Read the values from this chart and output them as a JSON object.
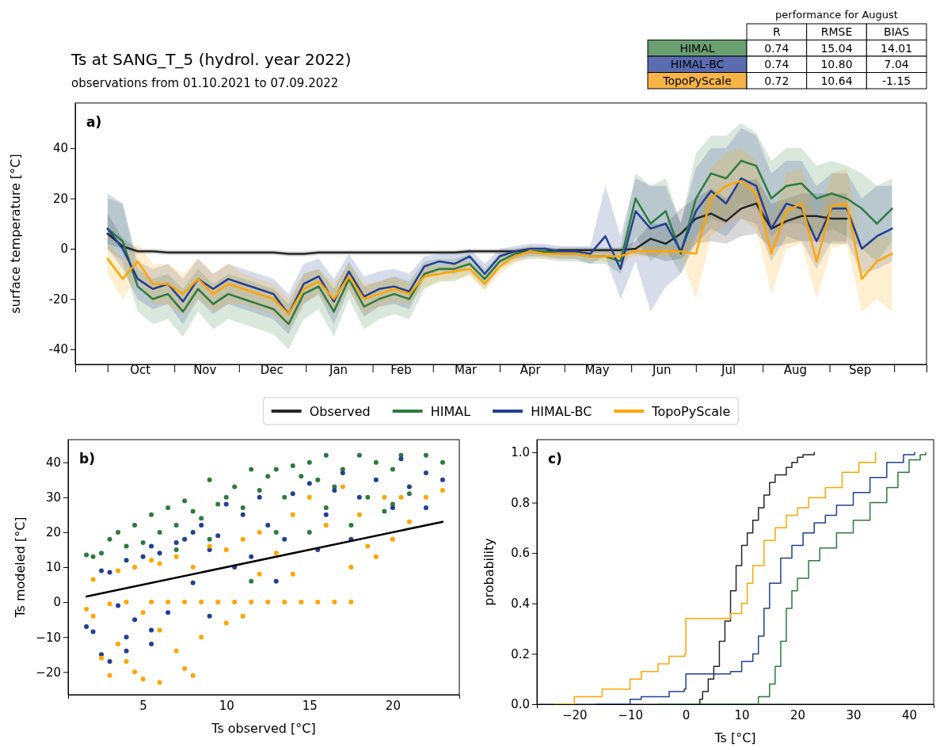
{
  "chart_data": [
    {
      "type": "other",
      "title": "performance for August",
      "categories": [
        "HIMAL",
        "HIMAL-BC",
        "TopoPyScale"
      ],
      "y_categories": [
        "R",
        "RMSE",
        "BIAS"
      ],
      "colors": [
        "#6a9f72",
        "#5b6db0",
        "#f7b447"
      ],
      "cell_labels": [
        [
          "0.74",
          "0.74",
          "0.72"
        ],
        [
          "15.04",
          "10.80",
          "10.64"
        ],
        [
          "14.01",
          "7.04",
          "-1.15"
        ]
      ]
    },
    {
      "type": "line",
      "title": "Ts at SANG_T_5 (hydrol. year 2022)",
      "subtitle": "observations from 01.10.2021 to 07.09.2022",
      "ylabel": "surface temperature [°C]",
      "annotations": [
        "a)"
      ],
      "legend": "bottom",
      "xlim": [
        "2021-09-16",
        "2022-10-16"
      ],
      "ylim": [
        -46,
        58
      ],
      "yticks": [
        -40,
        -20,
        0,
        20,
        40
      ],
      "xticks": [
        {
          "value": "2021-10-01",
          "label": null
        },
        {
          "value": "2021-10-16",
          "label": "Oct"
        },
        {
          "value": "2021-11-01",
          "label": null
        },
        {
          "value": "2021-11-15",
          "label": "Nov"
        },
        {
          "value": "2021-12-01",
          "label": null
        },
        {
          "value": "2021-12-16",
          "label": "Dec"
        },
        {
          "value": "2022-01-01",
          "label": null
        },
        {
          "value": "2022-01-16",
          "label": "Jan"
        },
        {
          "value": "2022-02-01",
          "label": null
        },
        {
          "value": "2022-02-14",
          "label": "Feb"
        },
        {
          "value": "2022-03-01",
          "label": null
        },
        {
          "value": "2022-03-16",
          "label": "Mar"
        },
        {
          "value": "2022-04-01",
          "label": null
        },
        {
          "value": "2022-04-15",
          "label": "Apr"
        },
        {
          "value": "2022-05-01",
          "label": null
        },
        {
          "value": "2022-05-16",
          "label": "May"
        },
        {
          "value": "2022-06-01",
          "label": null
        },
        {
          "value": "2022-06-15",
          "label": "Jun"
        },
        {
          "value": "2022-07-01",
          "label": null
        },
        {
          "value": "2022-07-16",
          "label": "Jul"
        },
        {
          "value": "2022-08-01",
          "label": null
        },
        {
          "value": "2022-08-16",
          "label": "Aug"
        },
        {
          "value": "2022-09-01",
          "label": null
        },
        {
          "value": "2022-09-15",
          "label": "Sep"
        },
        {
          "value": "2022-10-01",
          "label": null
        }
      ],
      "x": [
        "2021-10-01",
        "2021-10-08",
        "2021-10-15",
        "2021-10-22",
        "2021-10-29",
        "2021-11-05",
        "2021-11-12",
        "2021-11-19",
        "2021-11-26",
        "2021-12-03",
        "2021-12-10",
        "2021-12-17",
        "2021-12-24",
        "2021-12-31",
        "2022-01-07",
        "2022-01-14",
        "2022-01-21",
        "2022-01-28",
        "2022-02-04",
        "2022-02-11",
        "2022-02-18",
        "2022-02-25",
        "2022-03-04",
        "2022-03-11",
        "2022-03-18",
        "2022-03-25",
        "2022-04-01",
        "2022-04-08",
        "2022-04-15",
        "2022-04-22",
        "2022-04-29",
        "2022-05-06",
        "2022-05-13",
        "2022-05-20",
        "2022-05-27",
        "2022-06-03",
        "2022-06-10",
        "2022-06-17",
        "2022-06-24",
        "2022-07-01",
        "2022-07-08",
        "2022-07-15",
        "2022-07-22",
        "2022-07-29",
        "2022-08-05",
        "2022-08-12",
        "2022-08-19",
        "2022-08-26",
        "2022-09-02",
        "2022-09-09",
        "2022-09-16",
        "2022-09-23",
        "2022-09-30"
      ],
      "series": [
        {
          "name": "Observed",
          "color": "#262626",
          "values": [
            6,
            1,
            -1,
            -1,
            -1.5,
            -1.5,
            -1.5,
            -1.5,
            -1.5,
            -1.5,
            -1.5,
            -1.5,
            -2,
            -2,
            -1.5,
            -1.5,
            -1.5,
            -1.5,
            -1.5,
            -1.5,
            -1.5,
            -1.5,
            -1.5,
            -1.5,
            -1,
            -1,
            -1,
            -1,
            -1,
            -1,
            -0.5,
            -0.5,
            -0.5,
            -0.5,
            -0.5,
            0,
            4,
            2,
            6,
            12,
            14,
            11,
            16,
            18,
            8,
            11,
            13,
            13,
            12,
            12,
            null,
            null,
            null
          ],
          "lower": [
            2,
            0,
            -2,
            -2,
            -2.5,
            -2.5,
            -2.5,
            -2.5,
            -2.5,
            -2.5,
            -2.5,
            -2.5,
            -3,
            -3,
            -2.5,
            -2.5,
            -2.5,
            -2.5,
            -2.5,
            -2.5,
            -2.5,
            -2.5,
            -2.5,
            -2.5,
            -2,
            -2,
            -2,
            -2,
            -2,
            -2,
            -1.5,
            -1.5,
            -1.5,
            -1.5,
            -1.5,
            -2,
            -3,
            -5,
            -4,
            2,
            3,
            2,
            5,
            6,
            0,
            2,
            3,
            3,
            2,
            2,
            null,
            null,
            null
          ],
          "upper": [
            14,
            4,
            0,
            0,
            -0.5,
            -0.5,
            -0.5,
            -0.5,
            -0.5,
            -0.5,
            -0.5,
            -0.5,
            -1,
            -1,
            -0.5,
            -0.5,
            -0.5,
            -0.5,
            -0.5,
            -0.5,
            -0.5,
            -0.5,
            -0.5,
            -0.5,
            0,
            0,
            0,
            0,
            0,
            0,
            0.5,
            0.5,
            0.5,
            0.5,
            0.5,
            3,
            10,
            10,
            16,
            20,
            24,
            20,
            26,
            28,
            18,
            20,
            22,
            22,
            22,
            22,
            null,
            null,
            null
          ]
        },
        {
          "name": "HIMAL",
          "color": "#2e7a3e",
          "values": [
            8,
            3,
            -15,
            -20,
            -18,
            -25,
            -16,
            -22,
            -18,
            -20,
            -22,
            -24,
            -30,
            -18,
            -15,
            -25,
            -12,
            -23,
            -20,
            -18,
            -20,
            -10,
            -8,
            -8,
            -6,
            -12,
            -5,
            -2,
            -1,
            -1,
            -2,
            -2,
            -3,
            -3,
            -5,
            20,
            10,
            15,
            -2,
            20,
            30,
            28,
            35,
            33,
            20,
            25,
            26,
            20,
            22,
            20,
            16,
            10,
            16
          ],
          "lower": [
            0,
            -5,
            -25,
            -30,
            -28,
            -35,
            -25,
            -32,
            -28,
            -30,
            -32,
            -34,
            -40,
            -28,
            -24,
            -35,
            -20,
            -32,
            -28,
            -26,
            -28,
            -16,
            -13,
            -13,
            -10,
            -16,
            -8,
            -5,
            -4,
            -4,
            -5,
            -5,
            -6,
            -6,
            -10,
            5,
            -5,
            0,
            -10,
            5,
            12,
            10,
            18,
            16,
            5,
            10,
            10,
            5,
            8,
            5,
            0,
            -5,
            3
          ],
          "upper": [
            20,
            18,
            -8,
            -12,
            -10,
            -16,
            -8,
            -14,
            -10,
            -12,
            -14,
            -16,
            -22,
            -10,
            -8,
            -16,
            -5,
            -15,
            -13,
            -11,
            -13,
            -5,
            -4,
            -4,
            -2,
            -8,
            -2,
            0,
            1,
            1,
            0,
            0,
            0,
            0,
            0,
            30,
            25,
            28,
            10,
            38,
            45,
            45,
            50,
            46,
            35,
            40,
            40,
            33,
            35,
            33,
            30,
            25,
            28
          ]
        },
        {
          "name": "HIMAL-BC",
          "color": "#233f92",
          "values": [
            8,
            0,
            -12,
            -16,
            -14,
            -21,
            -12,
            -16,
            -12,
            -14,
            -16,
            -18,
            -26,
            -14,
            -11,
            -21,
            -9,
            -19,
            -16,
            -15,
            -17,
            -7,
            -5,
            -6,
            -3,
            -10,
            -3,
            -1,
            0,
            0,
            -1,
            -1,
            -2,
            5,
            -8,
            15,
            8,
            10,
            -1,
            15,
            23,
            18,
            28,
            25,
            8,
            18,
            16,
            3,
            16,
            16,
            0,
            5,
            8
          ],
          "lower": [
            0,
            -8,
            -20,
            -24,
            -22,
            -30,
            -20,
            -26,
            -22,
            -24,
            -26,
            -28,
            -34,
            -22,
            -18,
            -30,
            -16,
            -27,
            -23,
            -22,
            -24,
            -12,
            -9,
            -10,
            -7,
            -14,
            -6,
            -4,
            -3,
            -3,
            -4,
            -4,
            -6,
            -3,
            -20,
            -5,
            -25,
            -15,
            -10,
            2,
            8,
            5,
            12,
            10,
            -5,
            5,
            3,
            -8,
            3,
            3,
            -10,
            -8,
            -5
          ],
          "upper": [
            22,
            18,
            -5,
            -8,
            -6,
            -12,
            -4,
            -10,
            -6,
            -8,
            -10,
            -12,
            -18,
            -6,
            -4,
            -12,
            -2,
            -11,
            -9,
            -8,
            -10,
            -3,
            -2,
            -2,
            0,
            -6,
            0,
            1,
            2,
            2,
            1,
            1,
            1,
            25,
            5,
            28,
            25,
            25,
            10,
            32,
            40,
            40,
            48,
            45,
            30,
            35,
            35,
            25,
            30,
            30,
            20,
            25,
            25
          ]
        },
        {
          "name": "TopoPyScale",
          "color": "#ffa500",
          "values": [
            -4,
            -12,
            -5,
            -14,
            -14,
            -18,
            -12,
            -18,
            -14,
            -16,
            -18,
            -20,
            -26,
            -16,
            -13,
            -20,
            -11,
            -20,
            -18,
            -16,
            -18,
            -11,
            -10,
            -9,
            -8,
            -14,
            -7,
            -3,
            -1,
            -2,
            -2,
            -2,
            -3,
            -3,
            -3,
            -1,
            -1,
            -1,
            -1,
            -2,
            20,
            25,
            27,
            22,
            -2,
            15,
            18,
            -5,
            17,
            18,
            -12,
            -5,
            -2
          ],
          "lower": [
            -10,
            -20,
            -12,
            -22,
            -22,
            -26,
            -20,
            -25,
            -22,
            -22,
            -24,
            -26,
            -32,
            -22,
            -18,
            -26,
            -16,
            -26,
            -23,
            -21,
            -22,
            -15,
            -13,
            -12,
            -11,
            -17,
            -10,
            -6,
            -3,
            -4,
            -4,
            -4,
            -5,
            -5,
            -5,
            -3,
            -3,
            -3,
            -3,
            -20,
            5,
            10,
            12,
            8,
            -18,
            0,
            2,
            -20,
            0,
            2,
            -25,
            -20,
            -25
          ],
          "upper": [
            2,
            -4,
            2,
            -6,
            -6,
            -10,
            -4,
            -10,
            -6,
            -10,
            -12,
            -14,
            -20,
            -10,
            -8,
            -14,
            -6,
            -14,
            -13,
            -11,
            -14,
            -7,
            -7,
            -6,
            -5,
            -11,
            -4,
            0,
            1,
            0,
            0,
            0,
            -1,
            -1,
            -1,
            1,
            1,
            1,
            1,
            5,
            32,
            38,
            40,
            35,
            10,
            30,
            32,
            10,
            30,
            32,
            0,
            5,
            5
          ]
        }
      ]
    },
    {
      "type": "scatter",
      "xlabel": "Ts observed [°C]",
      "ylabel": "Ts modeled [°C]",
      "annotations": [
        "b)"
      ],
      "xlim": [
        0.5,
        24
      ],
      "ylim": [
        -26.5,
        46.5
      ],
      "xticks": [
        5,
        10,
        15,
        20
      ],
      "yticks": [
        {
          "value": -20,
          "label": "−20"
        },
        {
          "value": -10,
          "label": "−10"
        },
        0,
        10,
        20,
        30,
        40
      ],
      "series": [
        {
          "color": "#2e7a3e",
          "x": [
            1.6,
            2,
            2.5,
            3,
            3.5,
            4,
            4.5,
            5,
            5.5,
            6,
            6.5,
            7,
            7.5,
            8,
            8.5,
            9,
            9.5,
            10,
            10.5,
            11,
            11.5,
            12,
            12.5,
            13,
            13.5,
            14,
            14.5,
            15,
            15.5,
            16,
            16.5,
            17,
            17.5,
            18,
            18.5,
            19,
            19.5,
            20,
            20.5,
            21,
            22,
            23,
            11.5,
            13,
            16,
            15,
            20,
            9,
            7
          ],
          "values": [
            13.5,
            13,
            14,
            18,
            20,
            16,
            22,
            17,
            25,
            20,
            27,
            22,
            29,
            26,
            24,
            35,
            28,
            30,
            33,
            27,
            38,
            32,
            36,
            38,
            30,
            39,
            36,
            40,
            35,
            42,
            33,
            38,
            22,
            42,
            30,
            40,
            26,
            38,
            42,
            31,
            42,
            40,
            6,
            20,
            27,
            20,
            28,
            18,
            15
          ]
        },
        {
          "color": "#233f92",
          "x": [
            1.6,
            2,
            2.5,
            3,
            3.5,
            4,
            4,
            4.5,
            5,
            5.5,
            5.5,
            6,
            6.5,
            7,
            7.5,
            8,
            8,
            8.5,
            9,
            9,
            9.5,
            10,
            10.5,
            11,
            11.5,
            12,
            12.5,
            13,
            13.5,
            14,
            15,
            15.5,
            16,
            16.5,
            17,
            17.5,
            18,
            19,
            20,
            20.5,
            21,
            22,
            22,
            23,
            2.5,
            3,
            4,
            5.5
          ],
          "values": [
            -7,
            -8.5,
            9,
            8.5,
            -1,
            -10,
            12,
            -5,
            13,
            -8,
            16,
            14,
            -3,
            17,
            18,
            5.5,
            20,
            22,
            -4,
            15,
            19,
            28,
            10,
            25,
            13,
            30,
            22,
            6,
            18,
            31,
            34,
            15,
            25,
            32,
            37,
            18,
            30,
            35,
            27,
            41,
            33,
            37,
            27,
            35,
            -15,
            -17,
            -14,
            -12
          ]
        },
        {
          "color": "#ffa500",
          "x": [
            1.6,
            2,
            2,
            2.5,
            3,
            3,
            3.5,
            3.5,
            4,
            4,
            4.5,
            4.5,
            5,
            5,
            5.5,
            5.5,
            6,
            6,
            6,
            6.5,
            7,
            7,
            7.5,
            7.5,
            8,
            8,
            8.5,
            8.5,
            9,
            9.5,
            10,
            10,
            10.5,
            11,
            11,
            11.5,
            12,
            12.5,
            13,
            13.5,
            14,
            14.5,
            15,
            15.5,
            16,
            16.5,
            17,
            17.5,
            17.5,
            18,
            18.5,
            19,
            19.5,
            20,
            20.5,
            21,
            22,
            23,
            12,
            14
          ],
          "values": [
            -2,
            -4,
            6.5,
            -16,
            -21,
            -0.5,
            9,
            -12,
            -17,
            0,
            -20,
            10,
            -3,
            -22,
            0,
            12,
            -23,
            -8,
            11,
            0,
            -14,
            13,
            -19,
            0,
            -21,
            10,
            -10,
            0,
            16,
            0,
            -6,
            15,
            0,
            -4,
            18,
            0,
            20,
            0,
            14,
            0,
            25,
            0,
            30,
            0,
            22,
            0,
            33,
            0,
            10,
            25,
            16,
            13,
            30,
            18,
            30,
            23,
            30,
            32,
            8,
            8
          ]
        },
        {
          "type": "line",
          "color": "#000000",
          "x": [
            1.6,
            23
          ],
          "values": [
            1.6,
            23
          ]
        }
      ]
    },
    {
      "type": "step",
      "xlabel": "Ts [°C]",
      "ylabel": "probability",
      "annotations": [
        "c)"
      ],
      "xlim": [
        -26.7,
        44.4
      ],
      "ylim": [
        0,
        1.05
      ],
      "xticks": [
        {
          "value": -20,
          "label": "−20"
        },
        {
          "value": -10,
          "label": "−10"
        },
        0,
        10,
        20,
        30,
        40
      ],
      "yticks": [
        {
          "value": 0,
          "label": "0.0"
        },
        {
          "value": 0.2,
          "label": "0.2"
        },
        {
          "value": 0.4,
          "label": "0.4"
        },
        {
          "value": 0.6,
          "label": "0.6"
        },
        {
          "value": 0.8,
          "label": "0.8"
        },
        {
          "value": 1,
          "label": "1.0"
        }
      ],
      "series": [
        {
          "color": "#262626",
          "x": [
            1.8,
            2.5,
            3,
            4,
            5,
            6,
            7,
            8,
            9,
            10,
            11,
            12,
            13,
            14,
            15,
            16,
            18,
            19,
            20,
            21,
            23
          ],
          "values": [
            0,
            0.02,
            0.05,
            0.1,
            0.15,
            0.25,
            0.33,
            0.45,
            0.55,
            0.63,
            0.68,
            0.73,
            0.78,
            0.83,
            0.88,
            0.91,
            0.94,
            0.96,
            0.98,
            0.99,
            1
          ]
        },
        {
          "color": "#ffa500",
          "x": [
            -23.5,
            -20,
            -15,
            -10,
            -8,
            -5,
            -3,
            -0.2,
            0,
            6,
            8,
            10,
            11,
            12,
            14,
            16,
            18,
            20,
            22,
            25,
            28,
            31,
            34
          ],
          "values": [
            0,
            0.03,
            0.06,
            0.1,
            0.13,
            0.16,
            0.19,
            0.2,
            0.34,
            0.34,
            0.36,
            0.4,
            0.48,
            0.55,
            0.65,
            0.7,
            0.75,
            0.78,
            0.82,
            0.86,
            0.92,
            0.96,
            1
          ]
        },
        {
          "color": "#233f92",
          "x": [
            -16,
            -10,
            -8,
            -3,
            -0.3,
            0,
            5,
            8,
            10,
            12,
            13,
            14,
            15,
            17,
            19,
            21,
            23,
            25,
            27,
            30,
            33,
            36,
            39,
            41
          ],
          "values": [
            0,
            0.02,
            0.03,
            0.05,
            0.06,
            0.12,
            0.12,
            0.13,
            0.17,
            0.2,
            0.27,
            0.38,
            0.48,
            0.58,
            0.63,
            0.68,
            0.72,
            0.75,
            0.79,
            0.84,
            0.9,
            0.96,
            0.99,
            1
          ]
        },
        {
          "color": "#2e7a3e",
          "x": [
            -5,
            12,
            13,
            15,
            16,
            17,
            18,
            19,
            20,
            22,
            24,
            27,
            30,
            33,
            36,
            38,
            40,
            42,
            43
          ],
          "values": [
            0,
            0,
            0.03,
            0.08,
            0.15,
            0.25,
            0.38,
            0.45,
            0.5,
            0.57,
            0.62,
            0.68,
            0.73,
            0.8,
            0.86,
            0.92,
            0.97,
            0.99,
            1
          ]
        }
      ]
    }
  ]
}
